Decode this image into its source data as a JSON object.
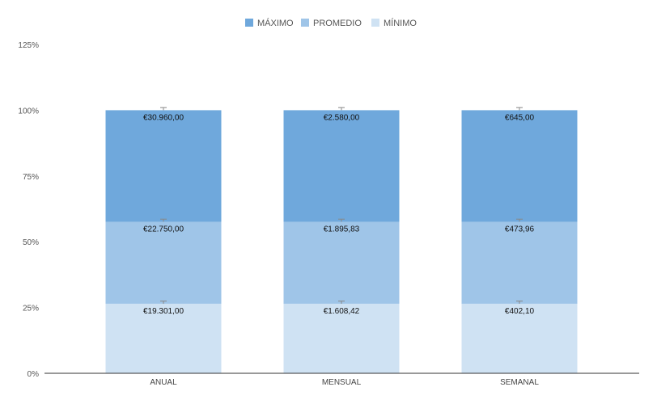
{
  "chart_data": {
    "type": "bar",
    "stacked": "percent",
    "categories": [
      "ANUAL",
      "MENSUAL",
      "SEMANAL"
    ],
    "series": [
      {
        "name": "MÍNIMO",
        "values": [
          19301.0,
          1608.42,
          402.1
        ],
        "labels": [
          "€19.301,00",
          "€1.608,42",
          "€402,10"
        ],
        "color": "#cfe2f3"
      },
      {
        "name": "PROMEDIO",
        "values": [
          22750.0,
          1895.83,
          473.96
        ],
        "labels": [
          "€22.750,00",
          "€1.895,83",
          "€473,96"
        ],
        "color": "#9fc5e8"
      },
      {
        "name": "MÁXIMO",
        "values": [
          30960.0,
          2580.0,
          645.0
        ],
        "labels": [
          "€30.960,00",
          "€2.580,00",
          "€645,00"
        ],
        "color": "#6fa8dc"
      }
    ],
    "legend_order": [
      "MÁXIMO",
      "PROMEDIO",
      "MÍNIMO"
    ],
    "legend_position": "top",
    "y_ticks": [
      "0%",
      "25%",
      "50%",
      "75%",
      "100%",
      "125%"
    ],
    "ylim": [
      0,
      125
    ],
    "error_bar_percent": 1,
    "grid": false
  }
}
